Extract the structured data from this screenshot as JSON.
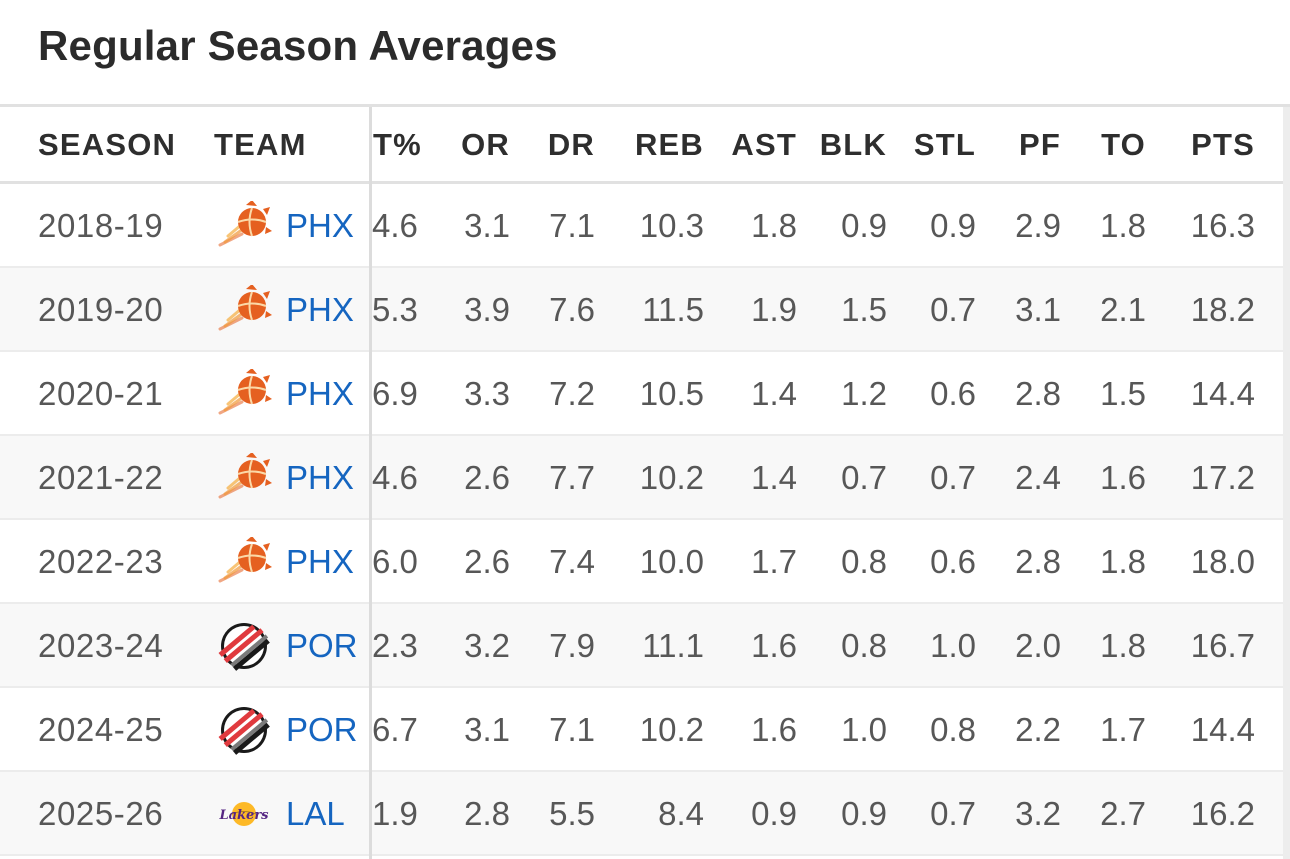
{
  "page_title": "Regular Season Averages",
  "columns": [
    "SEASON",
    "TEAM",
    "T%",
    "OR",
    "DR",
    "REB",
    "AST",
    "BLK",
    "STL",
    "PF",
    "TO",
    "PTS"
  ],
  "colors": {
    "link": "#1565c0",
    "text": "#575757",
    "header_text": "#2e2e2e",
    "suns_orange": "#e56020",
    "blazers_red": "#e03a3e",
    "lakers_purple": "#552583",
    "lakers_gold": "#fdb927"
  },
  "rows": [
    {
      "season": "2018-19",
      "team": "PHX",
      "logo_icon": "suns-logo-icon",
      "stats": [
        "4.6",
        "3.1",
        "7.1",
        "10.3",
        "1.8",
        "0.9",
        "0.9",
        "2.9",
        "1.8",
        "16.3"
      ]
    },
    {
      "season": "2019-20",
      "team": "PHX",
      "logo_icon": "suns-logo-icon",
      "stats": [
        "5.3",
        "3.9",
        "7.6",
        "11.5",
        "1.9",
        "1.5",
        "0.7",
        "3.1",
        "2.1",
        "18.2"
      ]
    },
    {
      "season": "2020-21",
      "team": "PHX",
      "logo_icon": "suns-logo-icon",
      "stats": [
        "6.9",
        "3.3",
        "7.2",
        "10.5",
        "1.4",
        "1.2",
        "0.6",
        "2.8",
        "1.5",
        "14.4"
      ]
    },
    {
      "season": "2021-22",
      "team": "PHX",
      "logo_icon": "suns-logo-icon",
      "stats": [
        "4.6",
        "2.6",
        "7.7",
        "10.2",
        "1.4",
        "0.7",
        "0.7",
        "2.4",
        "1.6",
        "17.2"
      ]
    },
    {
      "season": "2022-23",
      "team": "PHX",
      "logo_icon": "suns-logo-icon",
      "stats": [
        "6.0",
        "2.6",
        "7.4",
        "10.0",
        "1.7",
        "0.8",
        "0.6",
        "2.8",
        "1.8",
        "18.0"
      ]
    },
    {
      "season": "2023-24",
      "team": "POR",
      "logo_icon": "trail-blazers-logo-icon",
      "stats": [
        "2.3",
        "3.2",
        "7.9",
        "11.1",
        "1.6",
        "0.8",
        "1.0",
        "2.0",
        "1.8",
        "16.7"
      ]
    },
    {
      "season": "2024-25",
      "team": "POR",
      "logo_icon": "trail-blazers-logo-icon",
      "stats": [
        "6.7",
        "3.1",
        "7.1",
        "10.2",
        "1.6",
        "1.0",
        "0.8",
        "2.2",
        "1.7",
        "14.4"
      ]
    },
    {
      "season": "2025-26",
      "team": "LAL",
      "logo_icon": "lakers-logo-icon",
      "stats": [
        "1.9",
        "2.8",
        "5.5",
        "8.4",
        "0.9",
        "0.9",
        "0.7",
        "3.2",
        "2.7",
        "16.2"
      ]
    }
  ]
}
